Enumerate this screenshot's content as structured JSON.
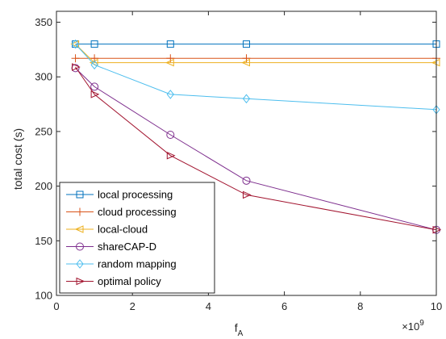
{
  "chart_data": {
    "type": "line",
    "xlabel": "f",
    "xlabel_sub": "A",
    "ylabel": "total cost (s)",
    "x_exponent_label": "×10",
    "x_exponent_power": "9",
    "xlim": [
      0,
      10
    ],
    "ylim": [
      100,
      360
    ],
    "xticks": [
      0,
      2,
      4,
      6,
      8,
      10
    ],
    "yticks": [
      100,
      150,
      200,
      250,
      300,
      350
    ],
    "grid": false,
    "legend_position": "bottom-left",
    "x": [
      0.5,
      1,
      3,
      5,
      10
    ],
    "series": [
      {
        "name": "local processing",
        "color": "#0072BD",
        "marker": "square",
        "values": [
          330,
          330,
          330,
          330,
          330
        ]
      },
      {
        "name": "cloud processing",
        "color": "#D95319",
        "marker": "plus",
        "values": [
          317,
          317,
          317,
          317,
          317
        ]
      },
      {
        "name": "local-cloud",
        "color": "#EDB120",
        "marker": "triangle-left",
        "values": [
          330,
          313,
          313,
          313,
          313
        ]
      },
      {
        "name": "shareCAP-D",
        "color": "#7E2F8E",
        "marker": "circle",
        "values": [
          308,
          291,
          247,
          205,
          160
        ]
      },
      {
        "name": "random mapping",
        "color": "#4DBEEE",
        "marker": "diamond",
        "values": [
          330,
          311,
          284,
          280,
          270
        ]
      },
      {
        "name": "optimal policy",
        "color": "#A2142F",
        "marker": "triangle-right",
        "values": [
          309,
          284,
          228,
          192,
          160
        ]
      }
    ]
  }
}
